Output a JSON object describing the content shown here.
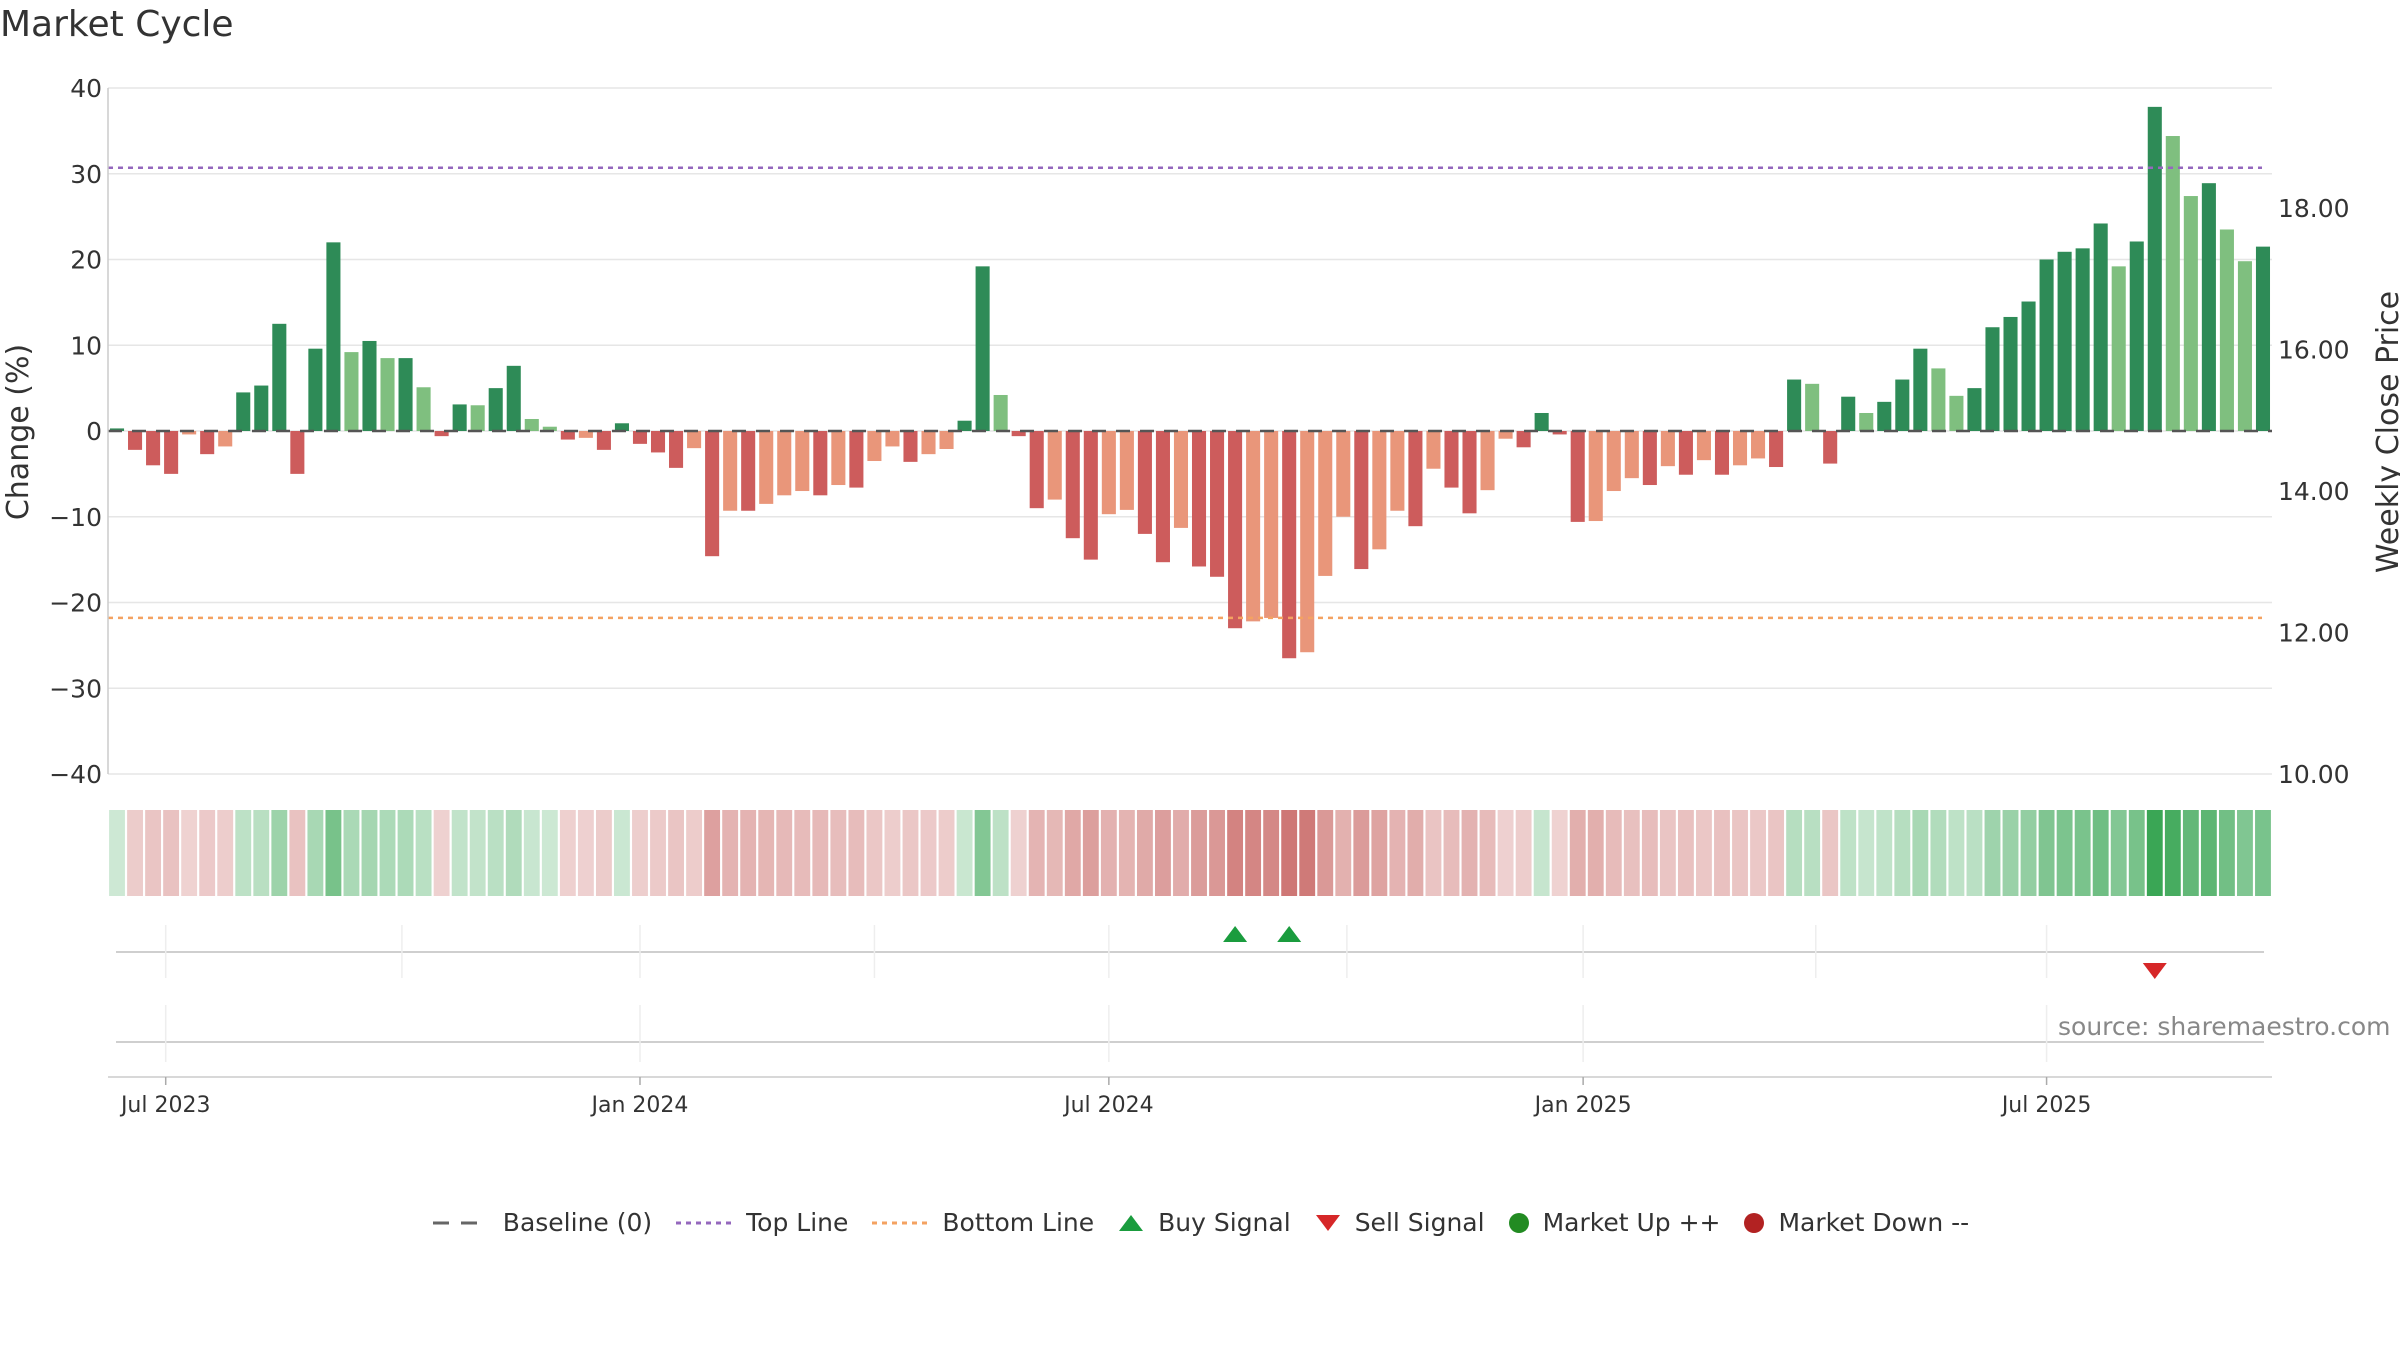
{
  "chart_data": {
    "type": "bar",
    "title": "Market Cycle",
    "ylabel_left": "Change (%)",
    "ylabel_right": "Weekly Close Price",
    "ylim": [
      -40,
      40
    ],
    "yticks": [
      "40",
      "30",
      "20",
      "10",
      "0",
      "−10",
      "−20",
      "−30",
      "−40"
    ],
    "y2ticks": [
      "18.00",
      "16.00",
      "14.00",
      "12.00",
      "10.00"
    ],
    "y2lim": [
      10,
      19.7
    ],
    "top_line": 30.7,
    "bottom_line": -21.8,
    "x_labels": [
      "Jul 2023",
      "Jan 2024",
      "Jul 2024",
      "Jan 2025",
      "Jul 2025"
    ],
    "x_label_weeks": [
      2.7,
      29,
      55,
      81.3,
      107
    ],
    "n_weeks": 120,
    "values": [
      0.3,
      -2.2,
      -4,
      -5,
      -0.4,
      -2.7,
      -1.8,
      4.5,
      5.3,
      12.5,
      -5,
      9.6,
      22,
      9.2,
      10.5,
      8.5,
      8.5,
      5.1,
      -0.6,
      3.1,
      3,
      5,
      7.6,
      1.4,
      0.5,
      -1,
      -0.8,
      -2.2,
      0.9,
      -1.5,
      -2.5,
      -4.3,
      -2,
      -14.6,
      -9.3,
      -9.3,
      -8.5,
      -7.5,
      -7,
      -7.5,
      -6.3,
      -6.6,
      -3.5,
      -1.8,
      -3.6,
      -2.7,
      -2.1,
      1.2,
      19.2,
      4.2,
      -0.6,
      -9,
      -8,
      -12.5,
      -15,
      -9.7,
      -9.2,
      -12,
      -15.3,
      -11.3,
      -15.8,
      -17,
      -23,
      -22.2,
      -21.8,
      -26.5,
      -25.8,
      -16.9,
      -10,
      -16.1,
      -13.8,
      -9.3,
      -11.1,
      -4.4,
      -6.6,
      -9.6,
      -6.9,
      -0.9,
      -1.9,
      2.1,
      -0.4,
      -10.6,
      -10.5,
      -7,
      -5.5,
      -6.3,
      -4.1,
      -5.1,
      -3.4,
      -5.1,
      -4,
      -3.2,
      -4.2,
      6,
      5.5,
      -3.8,
      4,
      2.1,
      3.4,
      6,
      9.6,
      7.3,
      4.1,
      5,
      12.1,
      13.3,
      15.1,
      20,
      20.9,
      21.3,
      24.2,
      19.2,
      22.1,
      37.8,
      34.4,
      27.4,
      28.9,
      23.5,
      19.8,
      21.5
    ],
    "signals": {
      "buy_weeks": [
        62,
        65
      ],
      "sell_weeks": [
        113
      ]
    },
    "legend": [
      "Baseline (0)",
      "Top Line",
      "Bottom Line",
      "Buy Signal",
      "Sell Signal",
      "Market Up ++",
      "Market Down --"
    ],
    "source": "source: sharemaestro.com",
    "colors": {
      "up_strong": "#2e8b57",
      "up_light": "#7fbf7f",
      "down_strong": "#cd5c5c",
      "down_light": "#e9967a",
      "top_line": "#9467bd",
      "bottom_line": "#f4a261",
      "buy": "#1a9c3e",
      "sell": "#d62728",
      "market_up": "#228b22",
      "market_down": "#b22222",
      "baseline": "#666666"
    }
  }
}
